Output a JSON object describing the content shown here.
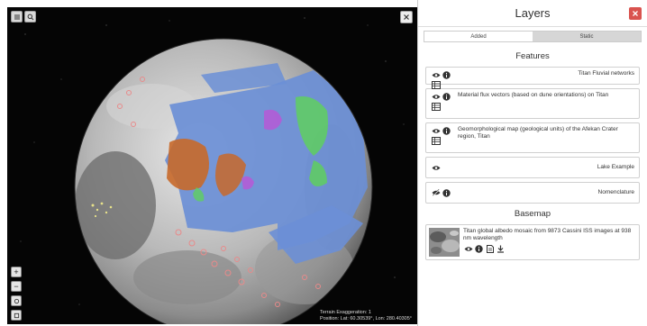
{
  "viewport": {
    "status_exaggeration": "Terrain Exaggeration: 1",
    "status_position": "Position: Lat: 60.30539°, Lon: 280.40305°",
    "zoom_in": "+",
    "zoom_out": "−"
  },
  "panel": {
    "title": "Layers",
    "tabs": [
      {
        "label": "Added",
        "active": true
      },
      {
        "label": "Static",
        "active": false
      }
    ],
    "features_heading": "Features",
    "features": [
      {
        "name": "Titan Fluvial networks",
        "align": "right"
      },
      {
        "name": "Material flux vectors (based on dune orientations) on Titan",
        "align": "left"
      },
      {
        "name": "Geomorphological map (geological units) of the Afekan Crater region, Titan",
        "align": "left"
      },
      {
        "name": "Lake Example",
        "align": "right"
      },
      {
        "name": "Nomenclature",
        "align": "right"
      }
    ],
    "basemap_heading": "Basemap",
    "basemap": {
      "name": "Titan global albedo mosaic from 9873 Cassini ISS images at 938 nm wavelength"
    }
  },
  "colors": {
    "close_red": "#d9534f",
    "overlay_blue": "#6b8fd6",
    "unit_orange": "#c8692a",
    "unit_green": "#5fcf5f",
    "unit_purple": "#b35cd6",
    "crater_pink": "#e88a8a"
  }
}
